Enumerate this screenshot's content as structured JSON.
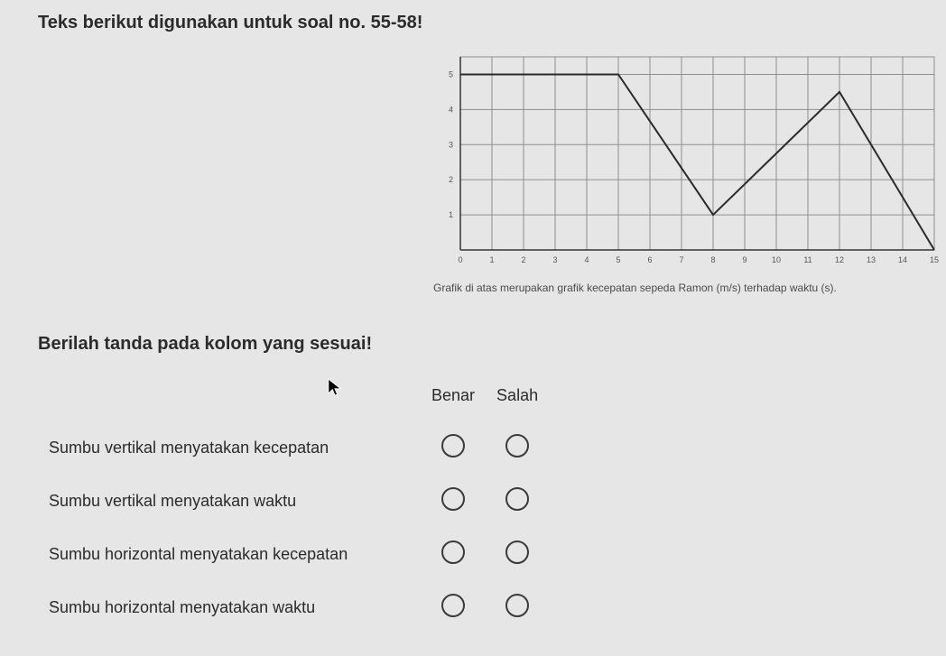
{
  "heading": "Teks berikut digunakan untuk soal no. 55-58!",
  "instruction": "Berilah tanda pada kolom yang sesuai!",
  "chart": {
    "type": "line",
    "caption": "Grafik di atas merupakan grafik kecepatan sepeda Ramon (m/s) terhadap waktu (s).",
    "x_ticks": [
      0,
      1,
      2,
      3,
      4,
      5,
      6,
      7,
      8,
      9,
      10,
      11,
      12,
      13,
      14,
      15
    ],
    "y_ticks": [
      1,
      2,
      3,
      4,
      5
    ],
    "xlim": [
      0,
      15
    ],
    "ylim": [
      0,
      5.5
    ],
    "grid_color": "#8f8f8f",
    "axis_color": "#333333",
    "line_color": "#2b2b2b",
    "line_width": 2,
    "background_color": "#e6e6e6",
    "tick_fontsize": 9,
    "tick_color": "#555555",
    "points": [
      {
        "x": 0,
        "y": 5
      },
      {
        "x": 5,
        "y": 5
      },
      {
        "x": 8,
        "y": 1
      },
      {
        "x": 12,
        "y": 4.5
      },
      {
        "x": 15,
        "y": 0
      }
    ]
  },
  "columns": {
    "benar": "Benar",
    "salah": "Salah"
  },
  "statements": [
    {
      "text": "Sumbu vertikal menyatakan kecepatan"
    },
    {
      "text": "Sumbu vertikal menyatakan waktu"
    },
    {
      "text": "Sumbu horizontal menyatakan kecepatan"
    },
    {
      "text": "Sumbu horizontal menyatakan waktu"
    }
  ]
}
